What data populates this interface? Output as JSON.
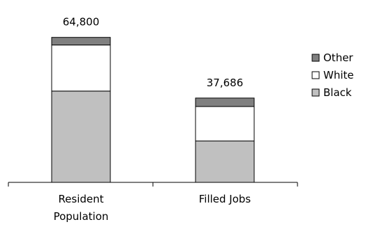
{
  "chart_data": {
    "type": "bar",
    "stacked": true,
    "categories": [
      "Resident Population",
      "Filled Jobs"
    ],
    "category_label_lines": [
      [
        "Resident",
        "Population"
      ],
      [
        "Filled Jobs"
      ]
    ],
    "totals": [
      64800,
      37686
    ],
    "total_labels": [
      "64,800",
      "37,686"
    ],
    "series": [
      {
        "name": "Black",
        "values": [
          40800,
          18500
        ],
        "color": "#c0c0c0"
      },
      {
        "name": "White",
        "values": [
          20600,
          15400
        ],
        "color": "#ffffff"
      },
      {
        "name": "Other",
        "values": [
          3400,
          3786
        ],
        "color": "#808080"
      }
    ],
    "legend_order": [
      "Other",
      "White",
      "Black"
    ],
    "legend_position": "right",
    "ylim": [
      0,
      70000
    ],
    "yaxis_visible": false,
    "grid": false
  }
}
